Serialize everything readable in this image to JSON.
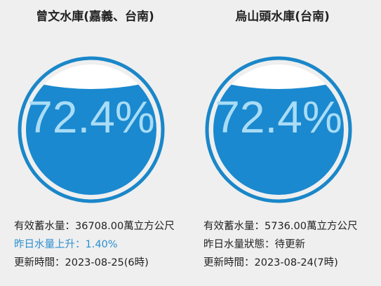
{
  "reservoirs": [
    {
      "title": "曾文水庫(嘉義、台南)",
      "percent": "72.4%",
      "lines": [
        "有效蓄水量：36708.00萬立方公尺",
        "昨日水量上升：1.40%",
        "更新時間：2023-08-25(6時)"
      ]
    },
    {
      "title": "烏山頭水庫(台南)",
      "percent": "72.4%",
      "lines": [
        "有效蓄水量：5736.00萬立方公尺",
        "昨日水量狀態：待更新",
        "更新時間：2023-08-24(7時)"
      ]
    }
  ]
}
